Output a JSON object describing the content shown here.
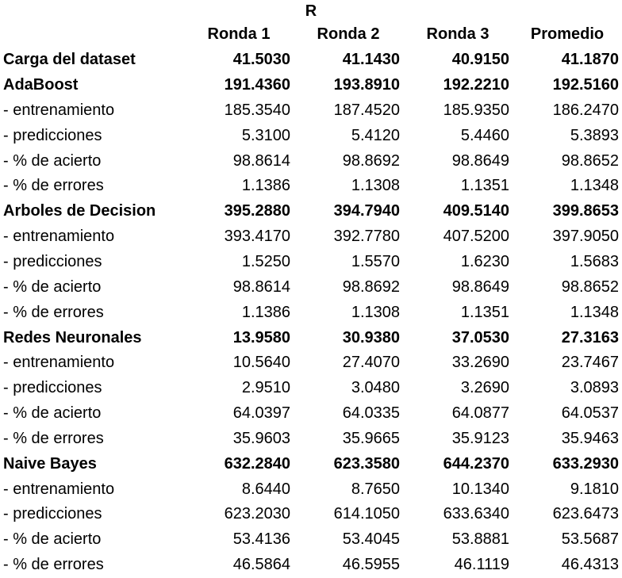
{
  "title": "R",
  "headers": [
    "",
    "Ronda 1",
    "Ronda 2",
    "Ronda 3",
    "Promedio"
  ],
  "rows": [
    {
      "label": "Carga del dataset",
      "bold": true,
      "values": [
        "41.5030",
        "41.1430",
        "40.9150",
        "41.1870"
      ]
    },
    {
      "label": "AdaBoost",
      "bold": true,
      "values": [
        "191.4360",
        "193.8910",
        "192.2210",
        "192.5160"
      ]
    },
    {
      "label": "- entrenamiento",
      "bold": false,
      "values": [
        "185.3540",
        "187.4520",
        "185.9350",
        "186.2470"
      ]
    },
    {
      "label": "- predicciones",
      "bold": false,
      "values": [
        "5.3100",
        "5.4120",
        "5.4460",
        "5.3893"
      ]
    },
    {
      "label": "- % de acierto",
      "bold": false,
      "values": [
        "98.8614",
        "98.8692",
        "98.8649",
        "98.8652"
      ]
    },
    {
      "label": "- % de errores",
      "bold": false,
      "values": [
        "1.1386",
        "1.1308",
        "1.1351",
        "1.1348"
      ]
    },
    {
      "label": "Arboles de Decision",
      "bold": true,
      "values": [
        "395.2880",
        "394.7940",
        "409.5140",
        "399.8653"
      ]
    },
    {
      "label": "- entrenamiento",
      "bold": false,
      "values": [
        "393.4170",
        "392.7780",
        "407.5200",
        "397.9050"
      ]
    },
    {
      "label": "- predicciones",
      "bold": false,
      "values": [
        "1.5250",
        "1.5570",
        "1.6230",
        "1.5683"
      ]
    },
    {
      "label": "- % de acierto",
      "bold": false,
      "values": [
        "98.8614",
        "98.8692",
        "98.8649",
        "98.8652"
      ]
    },
    {
      "label": "- % de errores",
      "bold": false,
      "values": [
        "1.1386",
        "1.1308",
        "1.1351",
        "1.1348"
      ]
    },
    {
      "label": "Redes Neuronales",
      "bold": true,
      "values": [
        "13.9580",
        "30.9380",
        "37.0530",
        "27.3163"
      ]
    },
    {
      "label": "- entrenamiento",
      "bold": false,
      "values": [
        "10.5640",
        "27.4070",
        "33.2690",
        "23.7467"
      ]
    },
    {
      "label": "- predicciones",
      "bold": false,
      "values": [
        "2.9510",
        "3.0480",
        "3.2690",
        "3.0893"
      ]
    },
    {
      "label": "- % de acierto",
      "bold": false,
      "values": [
        "64.0397",
        "64.0335",
        "64.0877",
        "64.0537"
      ]
    },
    {
      "label": "- % de errores",
      "bold": false,
      "values": [
        "35.9603",
        "35.9665",
        "35.9123",
        "35.9463"
      ]
    },
    {
      "label": "Naive Bayes",
      "bold": true,
      "values": [
        "632.2840",
        "623.3580",
        "644.2370",
        "633.2930"
      ]
    },
    {
      "label": "- entrenamiento",
      "bold": false,
      "values": [
        "8.6440",
        "8.7650",
        "10.1340",
        "9.1810"
      ]
    },
    {
      "label": "- predicciones",
      "bold": false,
      "values": [
        "623.2030",
        "614.1050",
        "633.6340",
        "623.6473"
      ]
    },
    {
      "label": "- % de acierto",
      "bold": false,
      "values": [
        "53.4136",
        "53.4045",
        "53.8881",
        "53.5687"
      ]
    },
    {
      "label": "- % de errores",
      "bold": false,
      "values": [
        "46.5864",
        "46.5955",
        "46.1119",
        "46.4313"
      ]
    }
  ]
}
